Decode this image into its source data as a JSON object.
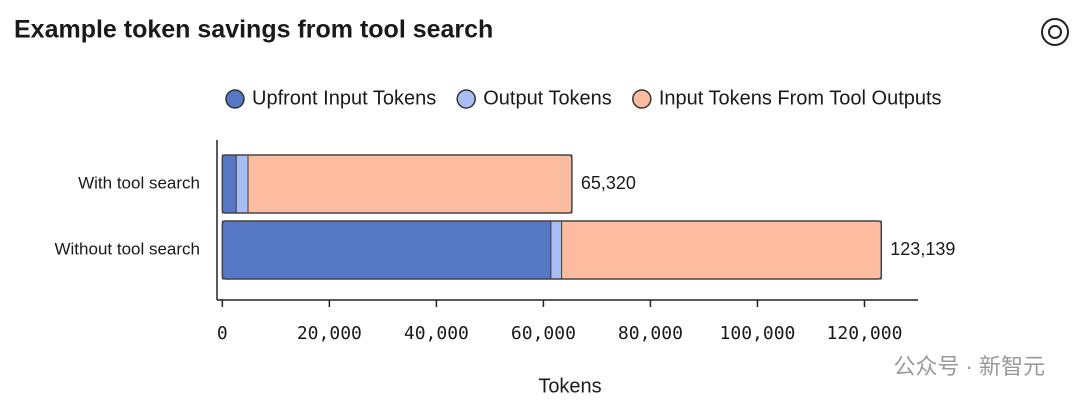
{
  "chart_data": {
    "type": "stacked-bar-horizontal",
    "title": "Example token savings from tool search",
    "categories": [
      "With tool search",
      "Without tool search"
    ],
    "series": [
      {
        "name": "Upfront Input Tokens",
        "color": "#5577c4",
        "values": [
          2600,
          61400
        ]
      },
      {
        "name": "Output Tokens",
        "color": "#a8bdf2",
        "values": [
          2200,
          2000
        ]
      },
      {
        "name": "Input Tokens From Tool Outputs",
        "color": "#fdbba0",
        "values": [
          60520,
          59739
        ]
      }
    ],
    "totals": [
      65320,
      123139
    ],
    "total_labels": [
      "65,320",
      "123,139"
    ],
    "xlabel": "Tokens",
    "xlim": [
      -1000,
      130000
    ],
    "xticks": [
      0,
      {
        "value": 20000,
        "label": "20,000"
      },
      {
        "value": 40000,
        "label": "40,000"
      },
      {
        "value": 60000,
        "label": "60,000"
      },
      {
        "value": 80000,
        "label": "80,000"
      },
      {
        "value": 100000,
        "label": "100,000"
      },
      {
        "value": 120000,
        "label": "120,000"
      }
    ],
    "legend": "top",
    "grid": false,
    "watermark": "公众号 · 新智元"
  }
}
